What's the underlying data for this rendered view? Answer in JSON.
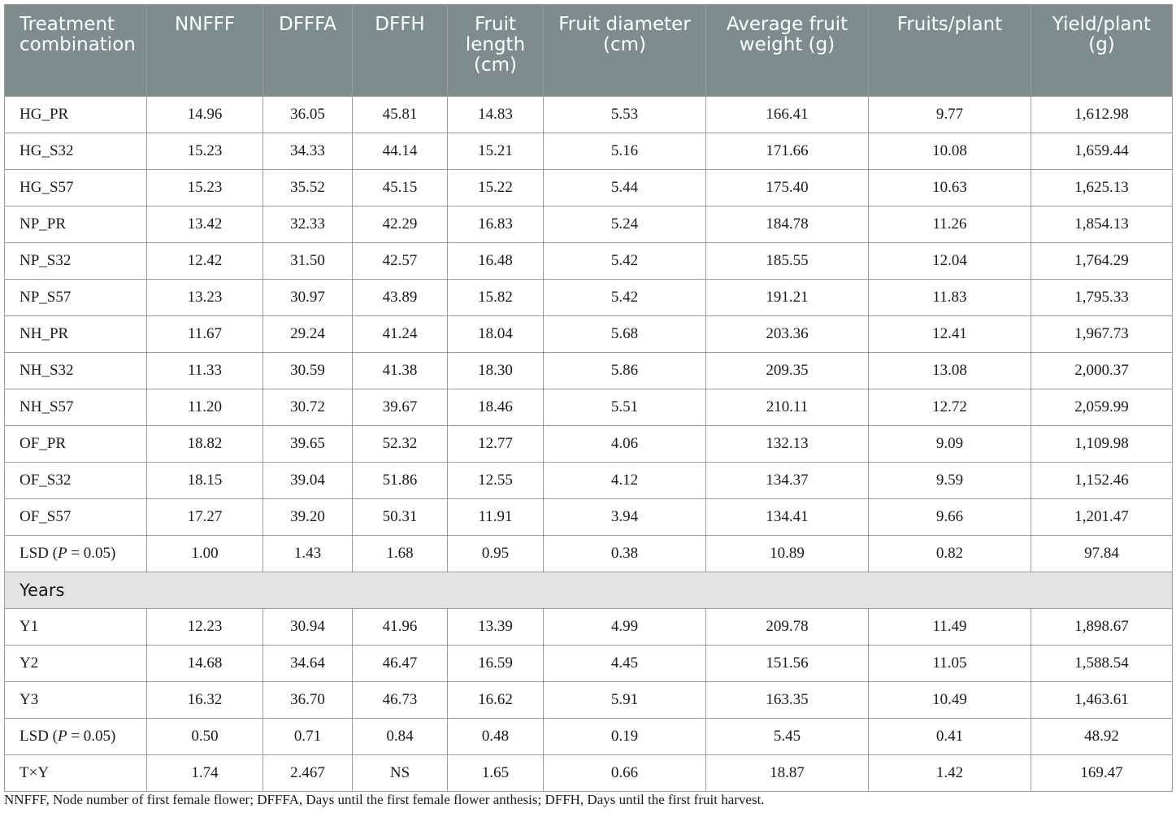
{
  "table": {
    "headers": [
      "Treatment combination",
      "NNFFF",
      "DFFFA",
      "DFFH",
      "Fruit length (cm)",
      "Fruit diameter (cm)",
      "Average fruit weight (g)",
      "Fruits/plant",
      "Yield/plant (g)"
    ],
    "treatment_rows": [
      [
        "HG_PR",
        "14.96",
        "36.05",
        "45.81",
        "14.83",
        "5.53",
        "166.41",
        "9.77",
        "1,612.98"
      ],
      [
        "HG_S32",
        "15.23",
        "34.33",
        "44.14",
        "15.21",
        "5.16",
        "171.66",
        "10.08",
        "1,659.44"
      ],
      [
        "HG_S57",
        "15.23",
        "35.52",
        "45.15",
        "15.22",
        "5.44",
        "175.40",
        "10.63",
        "1,625.13"
      ],
      [
        "NP_PR",
        "13.42",
        "32.33",
        "42.29",
        "16.83",
        "5.24",
        "184.78",
        "11.26",
        "1,854.13"
      ],
      [
        "NP_S32",
        "12.42",
        "31.50",
        "42.57",
        "16.48",
        "5.42",
        "185.55",
        "12.04",
        "1,764.29"
      ],
      [
        "NP_S57",
        "13.23",
        "30.97",
        "43.89",
        "15.82",
        "5.42",
        "191.21",
        "11.83",
        "1,795.33"
      ],
      [
        "NH_PR",
        "11.67",
        "29.24",
        "41.24",
        "18.04",
        "5.68",
        "203.36",
        "12.41",
        "1,967.73"
      ],
      [
        "NH_S32",
        "11.33",
        "30.59",
        "41.38",
        "18.30",
        "5.86",
        "209.35",
        "13.08",
        "2,000.37"
      ],
      [
        "NH_S57",
        "11.20",
        "30.72",
        "39.67",
        "18.46",
        "5.51",
        "210.11",
        "12.72",
        "2,059.99"
      ],
      [
        "OF_PR",
        "18.82",
        "39.65",
        "52.32",
        "12.77",
        "4.06",
        "132.13",
        "9.09",
        "1,109.98"
      ],
      [
        "OF_S32",
        "18.15",
        "39.04",
        "51.86",
        "12.55",
        "4.12",
        "134.37",
        "9.59",
        "1,152.46"
      ],
      [
        "OF_S57",
        "17.27",
        "39.20",
        "50.31",
        "11.91",
        "3.94",
        "134.41",
        "9.66",
        "1,201.47"
      ],
      [
        "LSD (P = 0.05)",
        "1.00",
        "1.43",
        "1.68",
        "0.95",
        "0.38",
        "10.89",
        "0.82",
        "97.84"
      ]
    ],
    "section_label": "Years",
    "year_rows": [
      [
        "Y1",
        "12.23",
        "30.94",
        "41.96",
        "13.39",
        "4.99",
        "209.78",
        "11.49",
        "1,898.67"
      ],
      [
        "Y2",
        "14.68",
        "34.64",
        "46.47",
        "16.59",
        "4.45",
        "151.56",
        "11.05",
        "1,588.54"
      ],
      [
        "Y3",
        "16.32",
        "36.70",
        "46.73",
        "16.62",
        "5.91",
        "163.35",
        "10.49",
        "1,463.61"
      ],
      [
        "LSD (P = 0.05)",
        "0.50",
        "0.71",
        "0.84",
        "0.48",
        "0.19",
        "5.45",
        "0.41",
        "48.92"
      ],
      [
        "T×Y",
        "1.74",
        "2.467",
        "NS",
        "1.65",
        "0.66",
        "18.87",
        "1.42",
        "169.47"
      ]
    ]
  },
  "footnote": "NNFFF, Node number of first female flower; DFFFA, Days until the first female flower anthesis; DFFH, Days until the first fruit harvest."
}
